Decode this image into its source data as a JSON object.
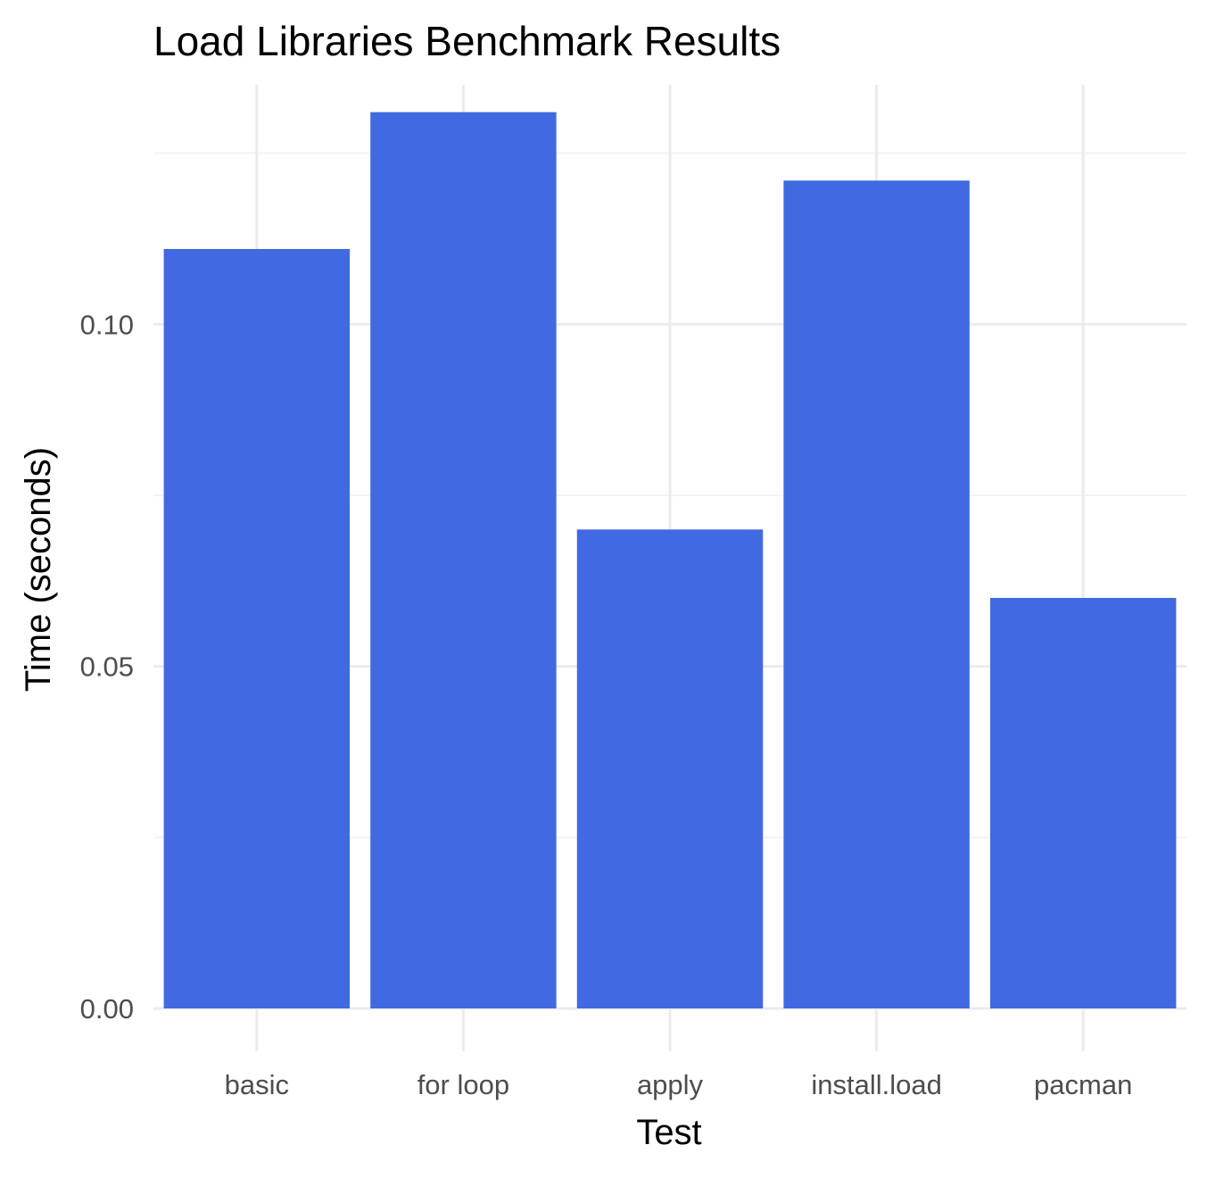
{
  "chart_data": {
    "type": "bar",
    "title": "Load Libraries Benchmark Results",
    "xlabel": "Test",
    "ylabel": "Time (seconds)",
    "categories": [
      "basic",
      "for loop",
      "apply",
      "install.load",
      "pacman"
    ],
    "values": [
      0.111,
      0.131,
      0.07,
      0.121,
      0.06
    ],
    "ylim": [
      0,
      0.135
    ],
    "y_ticks": [
      0.0,
      0.05,
      0.1
    ],
    "y_tick_labels": [
      "0.00",
      "0.05",
      "0.10"
    ],
    "y_minor_ticks": [
      0.025,
      0.075,
      0.125
    ],
    "grid": true,
    "legend": "none",
    "bar_color": "#4169E1"
  }
}
